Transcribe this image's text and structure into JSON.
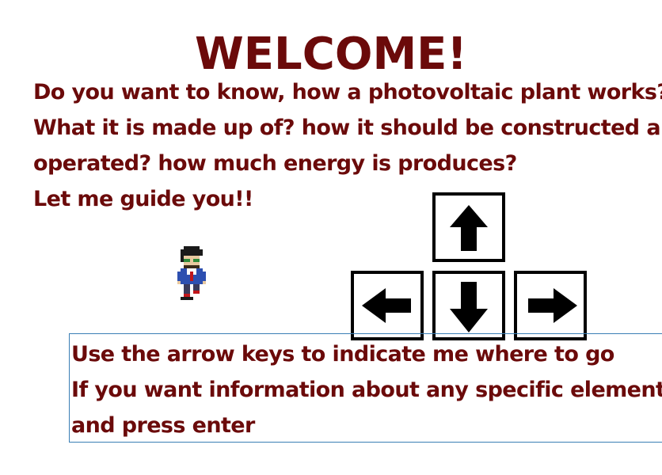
{
  "welcome": {
    "title": "WELCOME!",
    "lines": [
      "Do you want to know, how a photovoltaic plant works?",
      "What it is made up of? how it should be constructed and",
      "operated? how much energy is produces?",
      "Let me guide you!!"
    ]
  },
  "instructions": {
    "lines": [
      "Use the arrow keys to indicate me where to go",
      "If you want information about any specific element, go",
      "and press enter"
    ]
  },
  "controls": {
    "keys": [
      "arrow-up-icon",
      "arrow-left-icon",
      "arrow-down-icon",
      "arrow-right-icon"
    ]
  },
  "colors": {
    "text": "#6b0a0a",
    "key_border": "#000000",
    "box_border": "#3a7fb5"
  }
}
